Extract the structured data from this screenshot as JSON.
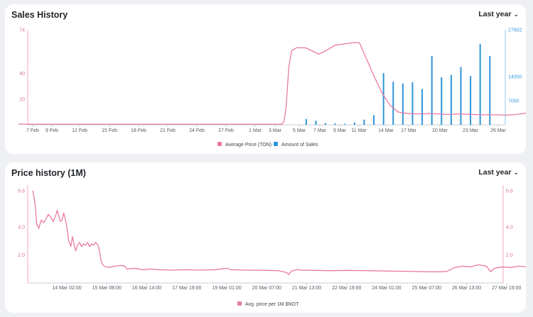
{
  "charts": [
    {
      "title": "Sales History",
      "period": "Last year",
      "chart_data": {
        "type": "line+bar",
        "x_tick_labels": [
          "7 Feb",
          "9 Feb",
          "12 Feb",
          "15 Feb",
          "18 Feb",
          "21 Feb",
          "24 Feb",
          "27 Feb",
          "1 Mar",
          "3 Mar",
          "5 Mar",
          "7 Mar",
          "9 Mar",
          "11 Mar",
          "14 Mar",
          "17 Mar",
          "20 Mar",
          "23 Mar",
          "26 Mar"
        ],
        "left_axis": {
          "ticks": [
            "74",
            "40",
            "20"
          ],
          "ylim": [
            0,
            74
          ]
        },
        "right_axis": {
          "ticks": [
            "27602",
            "14000",
            "7000"
          ],
          "ylim": [
            0,
            27602
          ]
        },
        "series": [
          {
            "name": "Average Price (TON)",
            "axis": "left",
            "color": "#e97aa3",
            "points": [
              [
                -1.5,
                0.5
              ],
              [
                25.8,
                0.5
              ],
              [
                26.0,
                3
              ],
              [
                26.2,
                12
              ],
              [
                26.5,
                45
              ],
              [
                26.8,
                58
              ],
              [
                27.3,
                60
              ],
              [
                28.2,
                60
              ],
              [
                28.8,
                58
              ],
              [
                29.6,
                55
              ],
              [
                30.4,
                58
              ],
              [
                31.3,
                62
              ],
              [
                32.3,
                63
              ],
              [
                33.2,
                64
              ],
              [
                33.8,
                64
              ],
              [
                34.5,
                52
              ],
              [
                35.3,
                38
              ],
              [
                36.2,
                24
              ],
              [
                37.0,
                15
              ],
              [
                37.8,
                10
              ],
              [
                38.5,
                9
              ],
              [
                39.8,
                8.5
              ],
              [
                41.0,
                8.8
              ],
              [
                42.0,
                8.5
              ],
              [
                43.0,
                8
              ],
              [
                44.0,
                8.5
              ],
              [
                45.0,
                8.2
              ],
              [
                46.5,
                7.8
              ],
              [
                48.0,
                7.8
              ],
              [
                49.0,
                7.5
              ],
              [
                50.0,
                8
              ],
              [
                51.0,
                9
              ],
              [
                51.5,
                9.5
              ]
            ]
          },
          {
            "name": "Amount of Sales",
            "axis": "right",
            "color": "#2e95d8",
            "bars": [
              [
                28.3,
                1700
              ],
              [
                29.3,
                1200
              ],
              [
                30.3,
                500
              ],
              [
                31.3,
                400
              ],
              [
                32.3,
                300
              ],
              [
                33.3,
                700
              ],
              [
                34.3,
                1500
              ],
              [
                35.3,
                2800
              ],
              [
                36.3,
                15000
              ],
              [
                37.3,
                12500
              ],
              [
                38.3,
                12000
              ],
              [
                39.3,
                12400
              ],
              [
                40.3,
                10400
              ],
              [
                41.3,
                20000
              ],
              [
                42.3,
                13800
              ],
              [
                43.3,
                14500
              ],
              [
                44.3,
                16800
              ],
              [
                45.3,
                14200
              ],
              [
                46.3,
                23500
              ],
              [
                47.3,
                20000
              ]
            ]
          }
        ],
        "legend_placement": "bottom-center",
        "grid": false
      }
    },
    {
      "title": "Price history (1M)",
      "period": "Last year",
      "chart_data": {
        "type": "line",
        "x_tick_labels": [
          "14 Mar 02:00",
          "15 Mar 08:00",
          "16 Mar 14:00",
          "17 Mar 19:00",
          "19 Mar 01:00",
          "20 Mar 07:00",
          "21 Mar 13:00",
          "22 Mar 19:00",
          "24 Mar 01:00",
          "25 Mar 07:00",
          "26 Mar 13:00",
          "27 Mar 19:00"
        ],
        "y_ticks": [
          "6.6",
          "4.0",
          "2.0"
        ],
        "ylim": [
          0,
          7.0
        ],
        "series": [
          {
            "name": "Avg. price per 1M $NOT",
            "color": "#e97aa3",
            "points": [
              [
                -0.85,
                6.6
              ],
              [
                -0.8,
                5.8
              ],
              [
                -0.75,
                4.2
              ],
              [
                -0.7,
                3.9
              ],
              [
                -0.64,
                4.5
              ],
              [
                -0.58,
                4.3
              ],
              [
                -0.52,
                4.6
              ],
              [
                -0.46,
                4.9
              ],
              [
                -0.4,
                4.7
              ],
              [
                -0.34,
                4.4
              ],
              [
                -0.28,
                4.8
              ],
              [
                -0.24,
                5.2
              ],
              [
                -0.2,
                4.8
              ],
              [
                -0.16,
                4.4
              ],
              [
                -0.12,
                4.5
              ],
              [
                -0.08,
                5.0
              ],
              [
                -0.04,
                4.6
              ],
              [
                0.0,
                4.0
              ],
              [
                0.05,
                3.0
              ],
              [
                0.1,
                2.6
              ],
              [
                0.14,
                3.3
              ],
              [
                0.18,
                2.8
              ],
              [
                0.22,
                2.3
              ],
              [
                0.27,
                2.7
              ],
              [
                0.32,
                2.9
              ],
              [
                0.37,
                2.6
              ],
              [
                0.42,
                2.8
              ],
              [
                0.47,
                2.7
              ],
              [
                0.52,
                2.9
              ],
              [
                0.57,
                2.6
              ],
              [
                0.62,
                2.8
              ],
              [
                0.67,
                2.7
              ],
              [
                0.72,
                2.9
              ],
              [
                0.78,
                2.7
              ],
              [
                0.82,
                2.3
              ],
              [
                0.85,
                1.7
              ],
              [
                0.88,
                1.4
              ],
              [
                0.93,
                1.2
              ],
              [
                1.05,
                1.1
              ],
              [
                1.2,
                1.2
              ],
              [
                1.35,
                1.25
              ],
              [
                1.45,
                1.2
              ],
              [
                1.5,
                1.0
              ],
              [
                1.7,
                1.05
              ],
              [
                1.9,
                0.95
              ],
              [
                2.1,
                1.0
              ],
              [
                2.3,
                0.95
              ],
              [
                2.6,
                0.92
              ],
              [
                3.0,
                0.95
              ],
              [
                3.3,
                0.92
              ],
              [
                3.7,
                0.95
              ],
              [
                4.0,
                1.05
              ],
              [
                4.1,
                0.95
              ],
              [
                4.5,
                0.92
              ],
              [
                5.0,
                0.9
              ],
              [
                5.3,
                0.88
              ],
              [
                5.5,
                0.75
              ],
              [
                5.55,
                0.6
              ],
              [
                5.62,
                0.85
              ],
              [
                5.75,
                0.95
              ],
              [
                5.9,
                0.92
              ],
              [
                6.2,
                0.9
              ],
              [
                6.6,
                0.88
              ],
              [
                7.0,
                0.9
              ],
              [
                7.5,
                0.88
              ],
              [
                8.0,
                0.85
              ],
              [
                8.6,
                0.83
              ],
              [
                9.0,
                0.8
              ],
              [
                9.3,
                0.8
              ],
              [
                9.5,
                0.82
              ],
              [
                9.7,
                1.1
              ],
              [
                9.9,
                1.2
              ],
              [
                10.1,
                1.15
              ],
              [
                10.3,
                1.3
              ],
              [
                10.5,
                1.2
              ],
              [
                10.55,
                1.0
              ],
              [
                10.6,
                0.8
              ],
              [
                10.7,
                1.05
              ],
              [
                10.9,
                1.15
              ],
              [
                11.1,
                1.1
              ],
              [
                11.3,
                1.2
              ],
              [
                11.5,
                1.15
              ],
              [
                11.7,
                1.05
              ],
              [
                11.75,
                1.0
              ]
            ]
          }
        ],
        "legend_placement": "bottom-center",
        "grid": false
      }
    }
  ]
}
